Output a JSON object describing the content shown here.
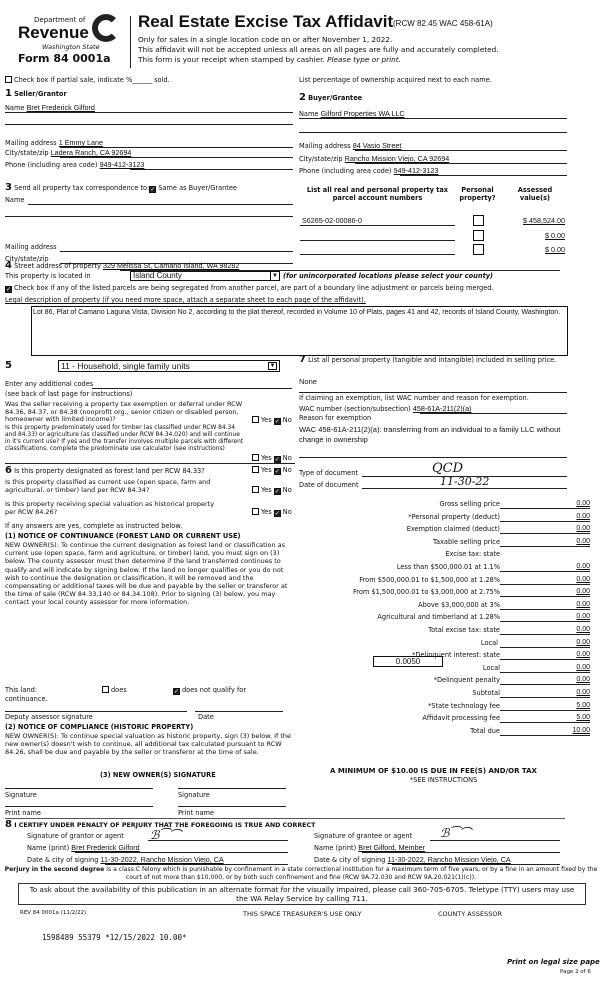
{
  "header": {
    "dept": "Department of",
    "revenue": "Revenue",
    "state": "Washington State",
    "form": "Form 84 0001a",
    "title": "Real Estate Excise Tax Affidavit",
    "rcw": "(RCW 82.45 WAC 458-61A)",
    "line1": "Only for sales in a single location code on or after November 1, 2022.",
    "line2": "This affidavit will not be accepted unless all areas on all pages are fully and accurately completed.",
    "line3": "This form is your receipt when stamped by cashier.",
    "line3i": "Please type or print."
  },
  "partial": {
    "label": "Check box if partial sale, indicate %",
    "sold": "sold.",
    "right": "List percentage of ownership acquired next to each name.",
    "checked": false
  },
  "seller": {
    "title": "Seller/Grantor",
    "name_label": "Name",
    "name": "Bret Frederick Gilford",
    "mail_label": "Mailing address",
    "mail": "1 Emmy Lane",
    "city_label": "City/state/zip",
    "city": "Ladera Ranch, CA 92694",
    "phone_label": "Phone (including area code)",
    "phone": "949-412-3123"
  },
  "buyer": {
    "title": "Buyer/Grantee",
    "name_label": "Name",
    "name": "Gilford Properties WA LLC",
    "mail_label": "Mailing address",
    "mail": "84 Vasio Street",
    "city_label": "City/state/zip",
    "city": "Rancho Mission Viejo, CA 92694",
    "phone_label": "Phone (including area code)",
    "phone": "949-412-3123"
  },
  "sec3": {
    "label": "Send all property tax correspondence to:",
    "same": "Same as Buyer/Grantee",
    "same_checked": true,
    "name_label": "Name",
    "mail_label": "Mailing address",
    "city_label": "City/state/zip"
  },
  "parcels": {
    "h1": "List all real and personal property tax",
    "h1b": "parcel account numbers",
    "h2": "Personal",
    "h2b": "property?",
    "h3": "Assessed",
    "h3b": "value(s)",
    "rows": [
      {
        "num": "S6265-02-00086-0",
        "personal": false,
        "value": "$ 458,524.00"
      },
      {
        "num": "",
        "personal": false,
        "value": "$ 0.00"
      },
      {
        "num": "",
        "personal": false,
        "value": "$ 0.00"
      }
    ]
  },
  "sec4": {
    "street_label": "Street address of property",
    "street": "329 Melissa St, Camano Island, WA 98282",
    "located_label": "This property is located in",
    "county": "Island County",
    "county_note": "(for unincorporated locations please select your county)",
    "segregated": "Check box if any of the listed parcels are being segregated from another parcel, are part of a boundary line adjustment or parcels being merged.",
    "segregated_checked": true,
    "legal_label": "Legal description of property (if you need more space, attach a separate sheet to each page of the affidavit).",
    "legal": "Lot 86, Plat of Camano Laguna Vista, Division No 2, according to the plat thereof, recorded in Volume 10 of Plats, pages 41 and 42, records of Island County, Washington."
  },
  "sec5": {
    "code": "11 - Household, single family units",
    "additional": "Enter any additional codes",
    "see_back": "(see back of last page for instructions)",
    "q1": "Was the seller receiving a property tax exemption or deferral under RCW 84.36, 84.37, or 84.38 (nonprofit org., senior citizen or disabled person, homeowner with limited income)?",
    "q2": "Is this property predominately used for timber (as classified under RCW 84.34 and 84.33) or agriculture (as classified under RCW 84.34.020) and will continue in it's current use? If yes and the transfer involves multiple parcels with different classifications, complete the predominate use calculator (see instructions)",
    "yes": "Yes",
    "no": "No"
  },
  "sec6": {
    "q1": "Is this property designated as forest land per RCW 84.33?",
    "q2": "Is this property classified as current use (open space, farm and agricultural, or timber) land per RCW 84.34?",
    "q3": "Is this property receiving special valuation as historical property per RCW 84.26?",
    "if_yes": "If any answers are yes, complete as instructed below.",
    "n1_title": "(1) NOTICE OF CONTINUANCE (FOREST LAND OR CURRENT USE)",
    "n1_text": "NEW OWNER(S): To continue the current designation as forest land or classification as current use (open space, farm and agriculture, or timber) land, you must sign on (3) below. The county assessor must then determine if the land transferred continues to qualify and will indicate by signing below. If the land no longer qualifies or you do not wish to continue the designation or classification, it will be removed and the compensating or additional taxes will be due and payable by the seller or transferor at the time of sale (RCW 84.33.140 or 84.34.108). Prior to signing (3) below, you may contact your local county assessor for more information.",
    "this_land": "This land:",
    "does": "does",
    "does_not": "does not qualify for",
    "continuance": "continuance.",
    "deputy": "Deputy assessor signature",
    "date": "Date",
    "n2_title": "(2) NOTICE OF COMPLIANCE (HISTORIC PROPERTY)",
    "n2_text": "NEW OWNER(S): To continue special valuation as historic property, sign (3) below. If the new owner(s) doesn't wish to continue, all additional tax calculated pursuant to RCW 84.26, shall be due and payable by the seller or transferor at the time of sale.",
    "n3_title": "(3) NEW OWNER(S) SIGNATURE",
    "signature": "Signature",
    "print_name": "Print name"
  },
  "sec7": {
    "label": "List all personal property (tangible and intangible) included in selling price.",
    "value": "None",
    "exempt_label": "If claiming an exemption, list WAC number and reason for exemption.",
    "wac_label": "WAC number (section/subsection)",
    "wac": "458-61A-211(2)(a)",
    "reason_label": "Reason for exemption",
    "reason": "WAC 458-61A-211(2)(a): transferring from an individual to a family LLC without change in ownership",
    "type_label": "Type of document",
    "type": "QCD",
    "date_label": "Date of document",
    "date": "11-30-22"
  },
  "tax": {
    "rows": [
      {
        "label": "Gross selling price",
        "value": "0.00"
      },
      {
        "label": "*Personal property (deduct)",
        "value": "0.00"
      },
      {
        "label": "Exemption claimed (deduct)",
        "value": "0.00"
      },
      {
        "label": "Taxable selling price",
        "value": "0.00"
      },
      {
        "label": "Excise tax: state",
        "value": ""
      },
      {
        "label": "Less than $500,000.01 at 1.1%",
        "value": "0.00"
      },
      {
        "label": "From $500,000.01 to $1,500,000 at 1.28%",
        "value": "0.00"
      },
      {
        "label": "From $1,500,000.01 to $3,000,000 at 2.75%",
        "value": "0.00"
      },
      {
        "label": "Above $3,000,000 at 3%",
        "value": "0.00"
      },
      {
        "label": "Agricultural and timberland at 1.28%",
        "value": "0.00"
      },
      {
        "label": "Total excise tax: state",
        "value": "0.00"
      },
      {
        "label": "Local",
        "value": "0.00"
      },
      {
        "label": "*Delinquent interest: state",
        "value": "0.00"
      },
      {
        "label": "Local",
        "value": "0.00"
      },
      {
        "label": "*Delinquent penalty",
        "value": "0.00"
      },
      {
        "label": "Subtotal",
        "value": "0.00"
      },
      {
        "label": "*State technology fee",
        "value": "5.00"
      },
      {
        "label": "Affidavit processing fee",
        "value": "5.00"
      },
      {
        "label": "Total due",
        "value": "10.00"
      }
    ],
    "local_rate": "0.0050",
    "minimum": "A MINIMUM OF $10.00 IS DUE IN FEE(S) AND/OR TAX",
    "see": "*SEE INSTRUCTIONS"
  },
  "sec8": {
    "title": "I CERTIFY UNDER PENALTY OF PERJURY THAT THE FOREGOING IS TRUE AND CORRECT",
    "sig_grantor": "Signature of grantor or agent",
    "sig_grantee": "Signature of grantee or agent",
    "name_label": "Name (print)",
    "grantor_name": "Bret Frederick Gilford",
    "grantee_name": "Bret Gilford, Member",
    "date_label": "Date & city of signing",
    "grantor_date": "11-30-2022, Rancho Mission Viejo, CA",
    "grantee_date": "11-30-2022, Rancho Mission Viejo, CA"
  },
  "footer": {
    "perjury_b": "Perjury in the second degree",
    "perjury": "is a class C felony which is punishable by confinement in a state correctional institution for a maximum term of five years, or by a fine in an amount fixed by the court of not more than $10,000, or by both such confinement and fine (RCW 9A.72.030 and RCW 9A.20.021(1)(c)).",
    "tty": "To ask about the availability of this publication in an alternate format for the visually impaired, please call 360-705-6705. Teletype (TTY) users may use the WA Relay Service by calling 711.",
    "rev": "REV 84 0001a (11/2/22)",
    "treasurer": "THIS SPACE TREASURER'S USE ONLY",
    "assessor": "COUNTY ASSESSOR",
    "receipt": "1598489 55379 *12/15/2022 10.00*",
    "legal_paper": "Print on legal size paper.",
    "page": "Page 2 of 6"
  }
}
